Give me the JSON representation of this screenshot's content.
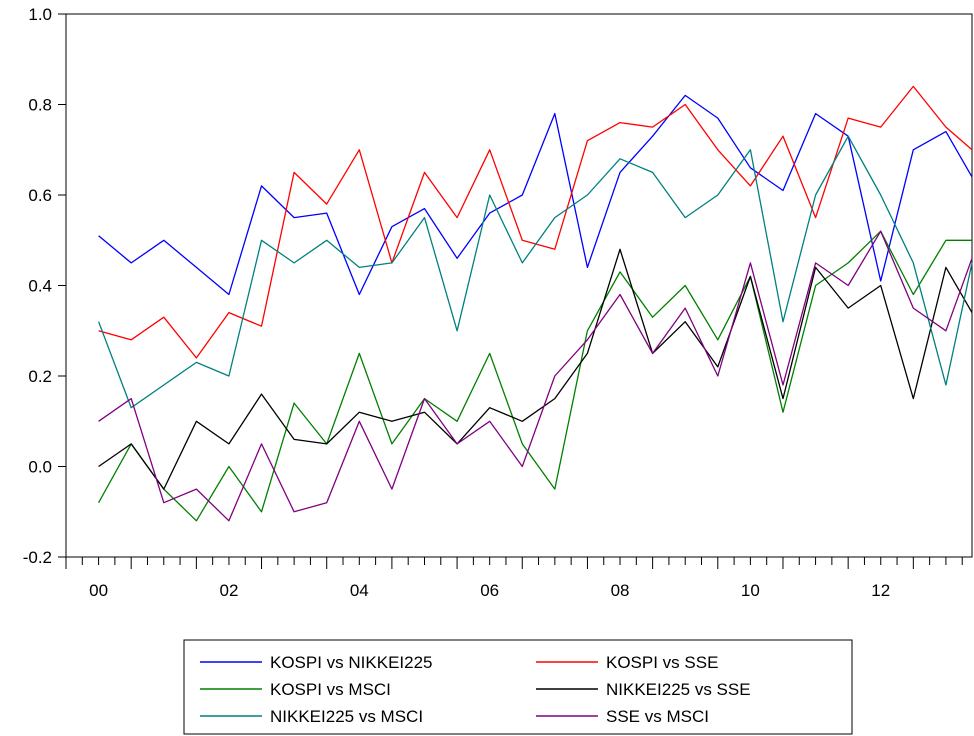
{
  "chart_data": {
    "type": "line",
    "title": "",
    "xlabel": "",
    "ylabel": "",
    "xlim": [
      2000.0,
      2013.9
    ],
    "ylim": [
      -0.2,
      1.0
    ],
    "yticks": [
      -0.2,
      0.0,
      0.2,
      0.4,
      0.6,
      0.8,
      1.0
    ],
    "ytick_labels": [
      "-0.2",
      "0.0",
      "0.2",
      "0.4",
      "0.6",
      "0.8",
      "1.0"
    ],
    "xtick_labels": [
      {
        "x": 2000.5,
        "label": "00"
      },
      {
        "x": 2002.5,
        "label": "02"
      },
      {
        "x": 2004.5,
        "label": "04"
      },
      {
        "x": 2006.5,
        "label": "06"
      },
      {
        "x": 2008.5,
        "label": "08"
      },
      {
        "x": 2010.5,
        "label": "10"
      },
      {
        "x": 2012.5,
        "label": "12"
      }
    ],
    "x": [
      2000.5,
      2001.0,
      2001.5,
      2002.0,
      2002.5,
      2003.0,
      2003.5,
      2004.0,
      2004.5,
      2005.0,
      2005.5,
      2006.0,
      2006.5,
      2007.0,
      2007.5,
      2008.0,
      2008.5,
      2009.0,
      2009.5,
      2010.0,
      2010.5,
      2011.0,
      2011.5,
      2012.0,
      2012.5,
      2013.0,
      2013.5,
      2013.9
    ],
    "grid": false,
    "legend_position": "bottom",
    "series": [
      {
        "name": "KOSPI vs NIKKEI225",
        "color": "#0000ff",
        "values": [
          0.51,
          0.45,
          0.5,
          0.44,
          0.38,
          0.62,
          0.55,
          0.56,
          0.38,
          0.53,
          0.57,
          0.46,
          0.56,
          0.6,
          0.78,
          0.44,
          0.65,
          0.73,
          0.82,
          0.77,
          0.66,
          0.61,
          0.78,
          0.73,
          0.41,
          0.7,
          0.74,
          0.64
        ]
      },
      {
        "name": "KOSPI vs SSE",
        "color": "#ff0000",
        "values": [
          0.3,
          0.28,
          0.33,
          0.24,
          0.34,
          0.31,
          0.65,
          0.58,
          0.7,
          0.45,
          0.65,
          0.55,
          0.7,
          0.5,
          0.48,
          0.72,
          0.76,
          0.75,
          0.8,
          0.7,
          0.62,
          0.73,
          0.55,
          0.77,
          0.75,
          0.84,
          0.75,
          0.7
        ]
      },
      {
        "name": "KOSPI vs MSCI",
        "color": "#008000",
        "values": [
          -0.08,
          0.05,
          -0.05,
          -0.12,
          0.0,
          -0.1,
          0.14,
          0.05,
          0.25,
          0.05,
          0.15,
          0.1,
          0.25,
          0.05,
          -0.05,
          0.3,
          0.43,
          0.33,
          0.4,
          0.28,
          0.42,
          0.12,
          0.4,
          0.45,
          0.52,
          0.38,
          0.5,
          0.5
        ]
      },
      {
        "name": "NIKKEI225 vs SSE",
        "color": "#000000",
        "values": [
          0.0,
          0.05,
          -0.05,
          0.1,
          0.05,
          0.16,
          0.06,
          0.05,
          0.12,
          0.1,
          0.12,
          0.05,
          0.13,
          0.1,
          0.15,
          0.25,
          0.48,
          0.25,
          0.32,
          0.22,
          0.42,
          0.15,
          0.44,
          0.35,
          0.4,
          0.15,
          0.44,
          0.34
        ]
      },
      {
        "name": "NIKKEI225 vs MSCI",
        "color": "#008080",
        "values": [
          0.32,
          0.13,
          0.18,
          0.23,
          0.2,
          0.5,
          0.45,
          0.5,
          0.44,
          0.45,
          0.55,
          0.3,
          0.6,
          0.45,
          0.55,
          0.6,
          0.68,
          0.65,
          0.55,
          0.6,
          0.7,
          0.32,
          0.6,
          0.73,
          0.6,
          0.45,
          0.18,
          0.45
        ]
      },
      {
        "name": "SSE vs MSCI",
        "color": "#800080",
        "values": [
          0.1,
          0.15,
          -0.08,
          -0.05,
          -0.12,
          0.05,
          -0.1,
          -0.08,
          0.1,
          -0.05,
          0.15,
          0.05,
          0.1,
          0.0,
          0.2,
          0.28,
          0.38,
          0.25,
          0.35,
          0.2,
          0.45,
          0.18,
          0.45,
          0.4,
          0.52,
          0.35,
          0.3,
          0.46
        ]
      }
    ]
  }
}
